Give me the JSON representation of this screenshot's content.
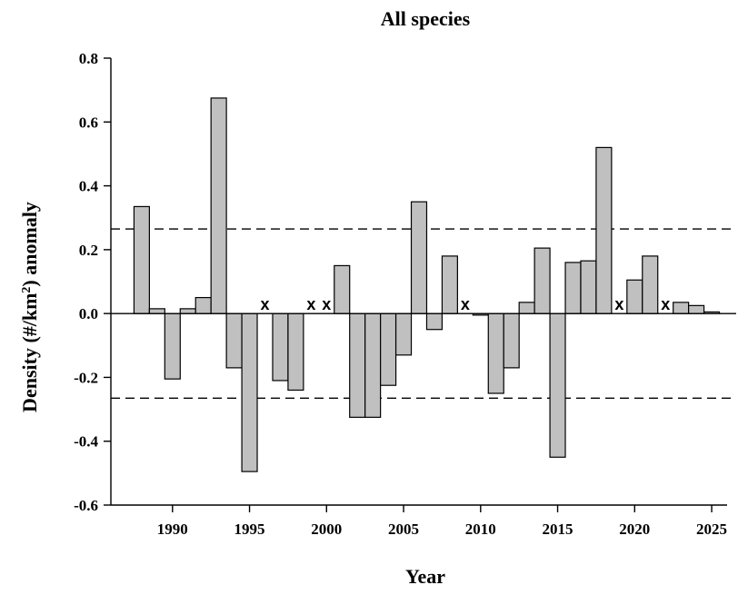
{
  "chart_data": {
    "type": "bar",
    "title": "All species",
    "xlabel": "Year",
    "ylabel_prefix": "Density (#/km",
    "ylabel_superscript": "2",
    "ylabel_suffix": ") anomaly",
    "xlim": [
      1986,
      2026
    ],
    "ylim": [
      -0.6,
      0.8
    ],
    "x_ticks": [
      1990,
      1995,
      2000,
      2005,
      2010,
      2015,
      2020,
      2025
    ],
    "y_ticks": [
      -0.6,
      -0.4,
      -0.2,
      0.0,
      0.2,
      0.4,
      0.6,
      0.8
    ],
    "y_tick_labels": [
      "-0.6",
      "-0.4",
      "-0.2",
      "0.0",
      "0.2",
      "0.4",
      "0.6",
      "0.8"
    ],
    "reference_lines": [
      0.265,
      -0.265
    ],
    "bar_color": "#c0c0c0",
    "bar_edge_color": "#000000",
    "missing_marker": "x",
    "missing_years": [
      1996,
      1999,
      2000,
      2009,
      2019,
      2022
    ],
    "series": [
      {
        "x": [
          1988,
          1989,
          1990,
          1991,
          1992,
          1993,
          1994,
          1995,
          1997,
          1998,
          2001,
          2002,
          2003,
          2004,
          2005,
          2006,
          2007,
          2008,
          2010,
          2011,
          2012,
          2013,
          2014,
          2015,
          2016,
          2017,
          2018,
          2020,
          2021,
          2023,
          2024,
          2025
        ],
        "values": [
          0.335,
          0.015,
          -0.205,
          0.015,
          0.05,
          0.675,
          -0.17,
          -0.495,
          -0.21,
          -0.24,
          0.15,
          -0.325,
          -0.325,
          -0.225,
          -0.13,
          0.35,
          -0.05,
          0.18,
          -0.005,
          -0.25,
          -0.17,
          0.035,
          0.205,
          -0.45,
          0.16,
          0.165,
          0.52,
          0.105,
          0.18,
          0.035,
          0.025,
          0.005
        ]
      }
    ]
  }
}
